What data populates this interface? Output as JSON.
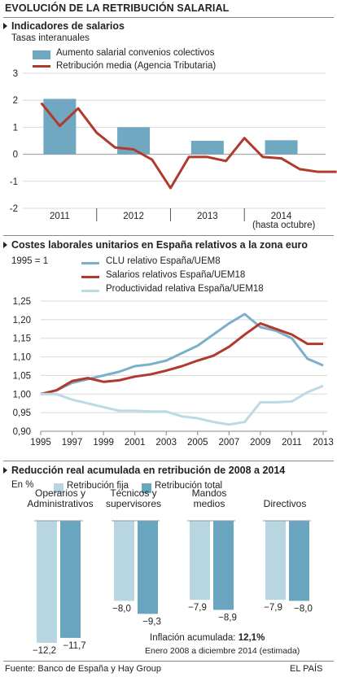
{
  "header": {
    "title": "EVOLUCIÓN DE LA RETRIBUCIÓN SALARIAL"
  },
  "charts": {
    "c1": {
      "title": "Indicadores de salarios",
      "subtitle": "Tasas interanuales",
      "note": "(hasta octubre)"
    },
    "c2": {
      "title": "Costes laborales unitarios en España relativos a la zona euro",
      "subtitle": "1995 = 1"
    },
    "c3": {
      "title": "Reducción real acumulada en retribución de 2008 a 2014",
      "subtitle": "En %",
      "inflation_label": "Inflación acumulada:",
      "inflation_value": "12,1%",
      "period": "Enero 2008 a diciembre 2014 (estimada)"
    }
  },
  "colors": {
    "bar_blue": "#6fa8c0",
    "line_red": "#b03a2e",
    "clu": "#7ab0c9",
    "prod": "#bcd9e6",
    "fija": "#b8d6e2",
    "total": "#6aa5bf"
  },
  "chart_data": [
    {
      "type": "bar+line",
      "title": "Indicadores de salarios",
      "subtitle": "Tasas interanuales",
      "ylim": [
        -2,
        3
      ],
      "yticks": [
        "3",
        "2",
        "1",
        "0",
        "-1",
        "-2"
      ],
      "xticks": [
        "2011",
        "2012",
        "2013",
        "2014"
      ],
      "series": [
        {
          "name": "Aumento salarial convenios colectivos",
          "type": "bar",
          "categories": [
            "2011",
            "2012",
            "2013",
            "2014"
          ],
          "values": [
            2.05,
            1.0,
            0.5,
            0.52
          ]
        },
        {
          "name": "Retribución media (Agencia Tributaria)",
          "type": "line",
          "x": [
            2010.75,
            2011.0,
            2011.25,
            2011.5,
            2011.75,
            2012.0,
            2012.25,
            2012.5,
            2012.75,
            2013.0,
            2013.25,
            2013.5,
            2013.75,
            2014.0,
            2014.25,
            2014.5,
            2014.75
          ],
          "values": [
            1.9,
            1.05,
            1.7,
            0.8,
            0.25,
            0.18,
            -0.2,
            -1.25,
            -0.1,
            -0.1,
            -0.25,
            0.6,
            -0.1,
            -0.15,
            -0.55,
            -0.65,
            -0.65
          ]
        }
      ]
    },
    {
      "type": "line",
      "title": "Costes laborales unitarios en España relativos a la zona euro",
      "subtitle": "1995 = 1",
      "ylim": [
        0.9,
        1.25
      ],
      "yticks": [
        "1,25",
        "1,20",
        "1,15",
        "1,10",
        "1,05",
        "1,00",
        "0,95",
        "0,90"
      ],
      "xticks": [
        "1995",
        "1997",
        "1999",
        "2001",
        "2003",
        "2005",
        "2007",
        "2009",
        "2011",
        "2013"
      ],
      "x": [
        1995,
        1996,
        1997,
        1998,
        1999,
        2000,
        2001,
        2002,
        2003,
        2004,
        2005,
        2006,
        2007,
        2008,
        2009,
        2010,
        2011,
        2012,
        2013
      ],
      "series": [
        {
          "name": "CLU relativo España/UEM8",
          "values": [
            1.0,
            1.01,
            1.03,
            1.04,
            1.05,
            1.06,
            1.075,
            1.08,
            1.09,
            1.11,
            1.13,
            1.16,
            1.19,
            1.215,
            1.18,
            1.17,
            1.15,
            1.095,
            1.077
          ]
        },
        {
          "name": "Salarios relativos España/UEM18",
          "values": [
            1.0,
            1.01,
            1.035,
            1.043,
            1.033,
            1.037,
            1.047,
            1.053,
            1.063,
            1.075,
            1.09,
            1.103,
            1.127,
            1.16,
            1.19,
            1.175,
            1.16,
            1.135,
            1.135
          ]
        },
        {
          "name": "Productividad relativa España/UEM18",
          "values": [
            1.0,
            1.0,
            0.985,
            0.975,
            0.965,
            0.955,
            0.955,
            0.953,
            0.953,
            0.94,
            0.935,
            0.925,
            0.918,
            0.925,
            0.978,
            0.978,
            0.98,
            1.005,
            1.022
          ]
        }
      ]
    },
    {
      "type": "bar",
      "title": "Reducción real acumulada en retribución de 2008 a 2014",
      "subtitle": "En %",
      "categories": [
        "Operarios y\nAdministrativos",
        "Técnicos y\nsupervisores",
        "Mandos\nmedios",
        "Directivos"
      ],
      "series": [
        {
          "name": "Retribución fija",
          "values": [
            -12.2,
            -8.0,
            -7.9,
            -7.9
          ],
          "labels": [
            "−12,2",
            "−8,0",
            "−7,9",
            "−7,9"
          ]
        },
        {
          "name": "Retribución total",
          "values": [
            -11.7,
            -9.3,
            -8.9,
            -8.0
          ],
          "labels": [
            "−11,7",
            "−9,3",
            "−8,9",
            "−8,0"
          ]
        }
      ]
    }
  ],
  "footer": {
    "source": "Fuente: Banco de España y Hay Group",
    "brand": "EL PAÍS"
  }
}
